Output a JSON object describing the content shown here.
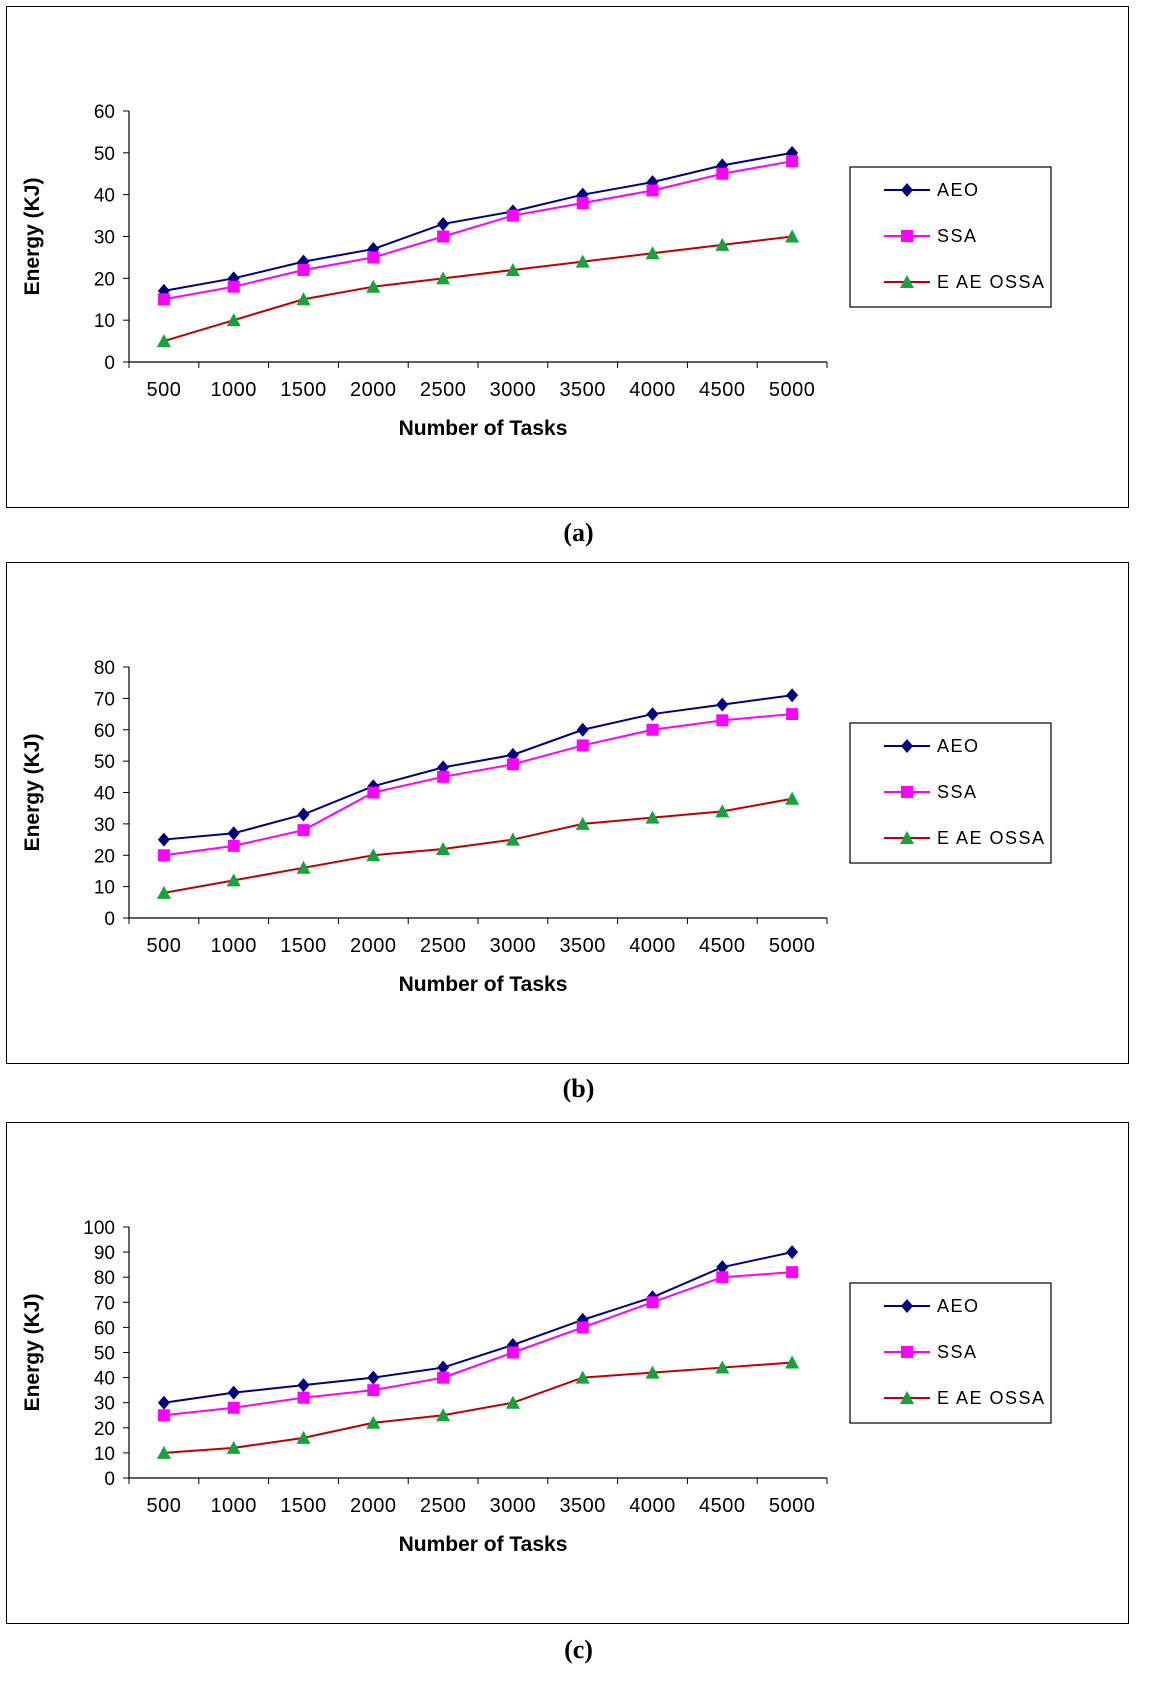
{
  "colors": {
    "AEO": "#000080",
    "SSA": "#ff00ff",
    "EAEOSSA_line": "#c00000",
    "EAEOSSA_marker": "#14a33c"
  },
  "chart_data": [
    {
      "type": "line",
      "caption": "(a)",
      "xlabel": "Number of Tasks",
      "ylabel": "Energy (KJ)",
      "categories": [
        "500",
        "1000",
        "1500",
        "2000",
        "2500",
        "3000",
        "3500",
        "4000",
        "4500",
        "5000"
      ],
      "ylim": [
        0,
        60
      ],
      "yticks": [
        "0",
        "10",
        "20",
        "30",
        "40",
        "50",
        "60"
      ],
      "legend_position": "right",
      "series": [
        {
          "name": "AEO",
          "marker": "diamond",
          "values": [
            17,
            20,
            24,
            27,
            33,
            36,
            40,
            43,
            47,
            50
          ]
        },
        {
          "name": "SSA",
          "marker": "square",
          "values": [
            15,
            18,
            22,
            25,
            30,
            35,
            38,
            41,
            45,
            48
          ]
        },
        {
          "name": "E AE OSSA",
          "marker": "triangle",
          "values": [
            5,
            10,
            15,
            18,
            20,
            22,
            24,
            26,
            28,
            30
          ]
        }
      ]
    },
    {
      "type": "line",
      "caption": "(b)",
      "xlabel": "Number of Tasks",
      "ylabel": "Energy (KJ)",
      "categories": [
        "500",
        "1000",
        "1500",
        "2000",
        "2500",
        "3000",
        "3500",
        "4000",
        "4500",
        "5000"
      ],
      "ylim": [
        0,
        80
      ],
      "yticks": [
        "0",
        "10",
        "20",
        "30",
        "40",
        "50",
        "60",
        "70",
        "80"
      ],
      "legend_position": "right",
      "series": [
        {
          "name": "AEO",
          "marker": "diamond",
          "values": [
            25,
            27,
            33,
            42,
            48,
            52,
            60,
            65,
            68,
            71
          ]
        },
        {
          "name": "SSA",
          "marker": "square",
          "values": [
            20,
            23,
            28,
            40,
            45,
            49,
            55,
            60,
            63,
            65
          ]
        },
        {
          "name": "E AE OSSA",
          "marker": "triangle",
          "values": [
            8,
            12,
            16,
            20,
            22,
            25,
            30,
            32,
            34,
            38
          ]
        }
      ]
    },
    {
      "type": "line",
      "caption": "(c)",
      "xlabel": "Number of Tasks",
      "ylabel": "Energy (KJ)",
      "categories": [
        "500",
        "1000",
        "1500",
        "2000",
        "2500",
        "3000",
        "3500",
        "4000",
        "4500",
        "5000"
      ],
      "ylim": [
        0,
        100
      ],
      "yticks": [
        "0",
        "10",
        "20",
        "30",
        "40",
        "50",
        "60",
        "70",
        "80",
        "90",
        "100"
      ],
      "legend_position": "right",
      "series": [
        {
          "name": "AEO",
          "marker": "diamond",
          "values": [
            30,
            34,
            37,
            40,
            44,
            53,
            63,
            72,
            84,
            90
          ]
        },
        {
          "name": "SSA",
          "marker": "square",
          "values": [
            25,
            28,
            32,
            35,
            40,
            50,
            60,
            70,
            80,
            82
          ]
        },
        {
          "name": "E AE OSSA",
          "marker": "triangle",
          "values": [
            10,
            12,
            16,
            22,
            25,
            30,
            40,
            42,
            44,
            46
          ]
        }
      ]
    }
  ]
}
